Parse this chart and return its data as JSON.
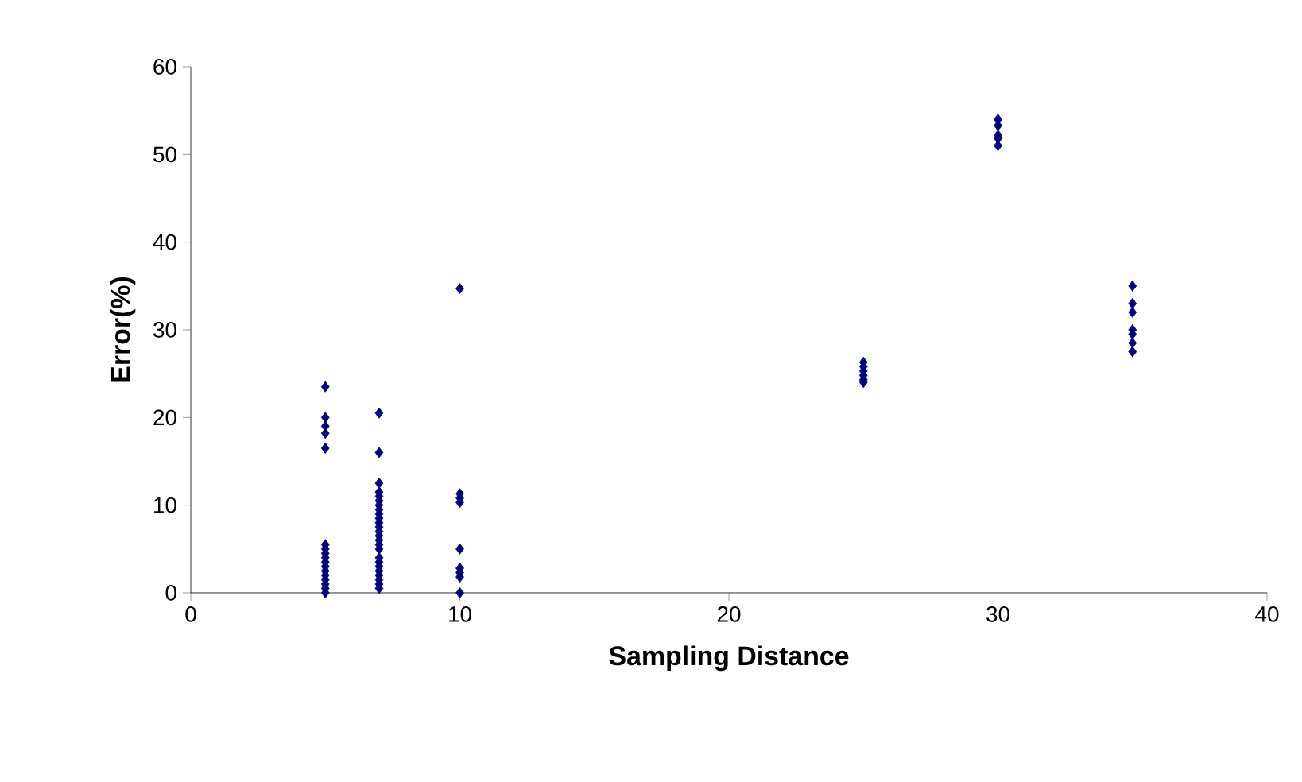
{
  "chart_data": {
    "type": "scatter",
    "xlabel": "Sampling Distance",
    "ylabel": "Error(%)",
    "series": [
      {
        "color": "#000080",
        "x": [
          5,
          5,
          5,
          5,
          5,
          5,
          5,
          5,
          5,
          5,
          5,
          5,
          5,
          5,
          5,
          5,
          5,
          7,
          7,
          7,
          7,
          7,
          7,
          7,
          7,
          7,
          7,
          7,
          7,
          7,
          7,
          7,
          7,
          7,
          7,
          7,
          7,
          7,
          7,
          7,
          7,
          7,
          10,
          10,
          10,
          10,
          10,
          10,
          10,
          10,
          10,
          25,
          25,
          25,
          25,
          25,
          25,
          30,
          30,
          30,
          30,
          30,
          35,
          35,
          35,
          35,
          35,
          35,
          35
        ],
        "values": [
          23.5,
          20,
          19,
          18.2,
          16.5,
          5.5,
          5,
          4.5,
          4,
          3.5,
          3,
          2.5,
          2,
          1.5,
          1,
          0.5,
          0,
          20.5,
          16,
          12.5,
          11.5,
          11,
          10.5,
          10,
          9.5,
          9,
          8.5,
          8,
          7.5,
          7,
          6.5,
          6,
          5.5,
          5,
          4,
          3.5,
          3,
          2.5,
          2,
          1.5,
          1,
          0.5,
          34.7,
          11.3,
          10.8,
          10.3,
          5,
          2.8,
          2.3,
          1.8,
          0,
          26.3,
          25.8,
          25.3,
          24.8,
          24.3,
          24,
          54,
          53.3,
          52.2,
          51.8,
          51,
          35,
          33,
          32,
          30,
          29.5,
          28.5,
          27.5
        ]
      }
    ],
    "marker": "diamond",
    "grid": false,
    "xlim": [
      0,
      40
    ],
    "xticks": [
      0,
      10,
      20,
      30,
      40
    ],
    "ylim": [
      0,
      60
    ],
    "yticks": [
      0,
      10,
      20,
      30,
      40,
      50,
      60
    ]
  }
}
